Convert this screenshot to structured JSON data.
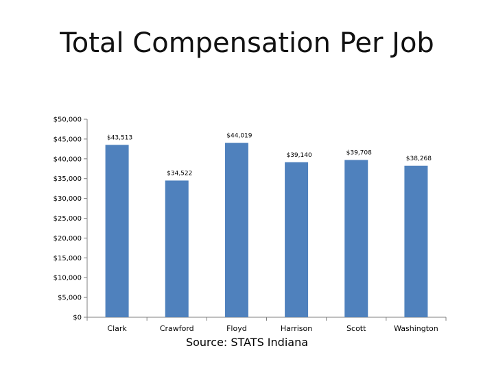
{
  "slide": {
    "title": "Total Compensation Per Job",
    "source": "Source:  STATS Indiana"
  },
  "colors": {
    "bar": "#4F81BD",
    "axis": "#7f7f7f",
    "grid": "#bfbfbf"
  },
  "chart_data": {
    "type": "bar",
    "title": "",
    "xlabel": "",
    "ylabel": "",
    "categories": [
      "Clark",
      "Crawford",
      "Floyd",
      "Harrison",
      "Scott",
      "Washington"
    ],
    "values": [
      43513,
      34522,
      44019,
      39140,
      39708,
      38268
    ],
    "value_labels": [
      "$43,513",
      "$34,522",
      "$44,019",
      "$39,140",
      "$39,708",
      "$38,268"
    ],
    "ylim": [
      0,
      50000
    ],
    "yticks": [
      0,
      5000,
      10000,
      15000,
      20000,
      25000,
      30000,
      35000,
      40000,
      45000,
      50000
    ],
    "ytick_labels": [
      "$0",
      "$5,000",
      "$10,000",
      "$15,000",
      "$20,000",
      "$25,000",
      "$30,000",
      "$35,000",
      "$40,000",
      "$45,000",
      "$50,000"
    ],
    "grid": false,
    "legend": "none"
  }
}
